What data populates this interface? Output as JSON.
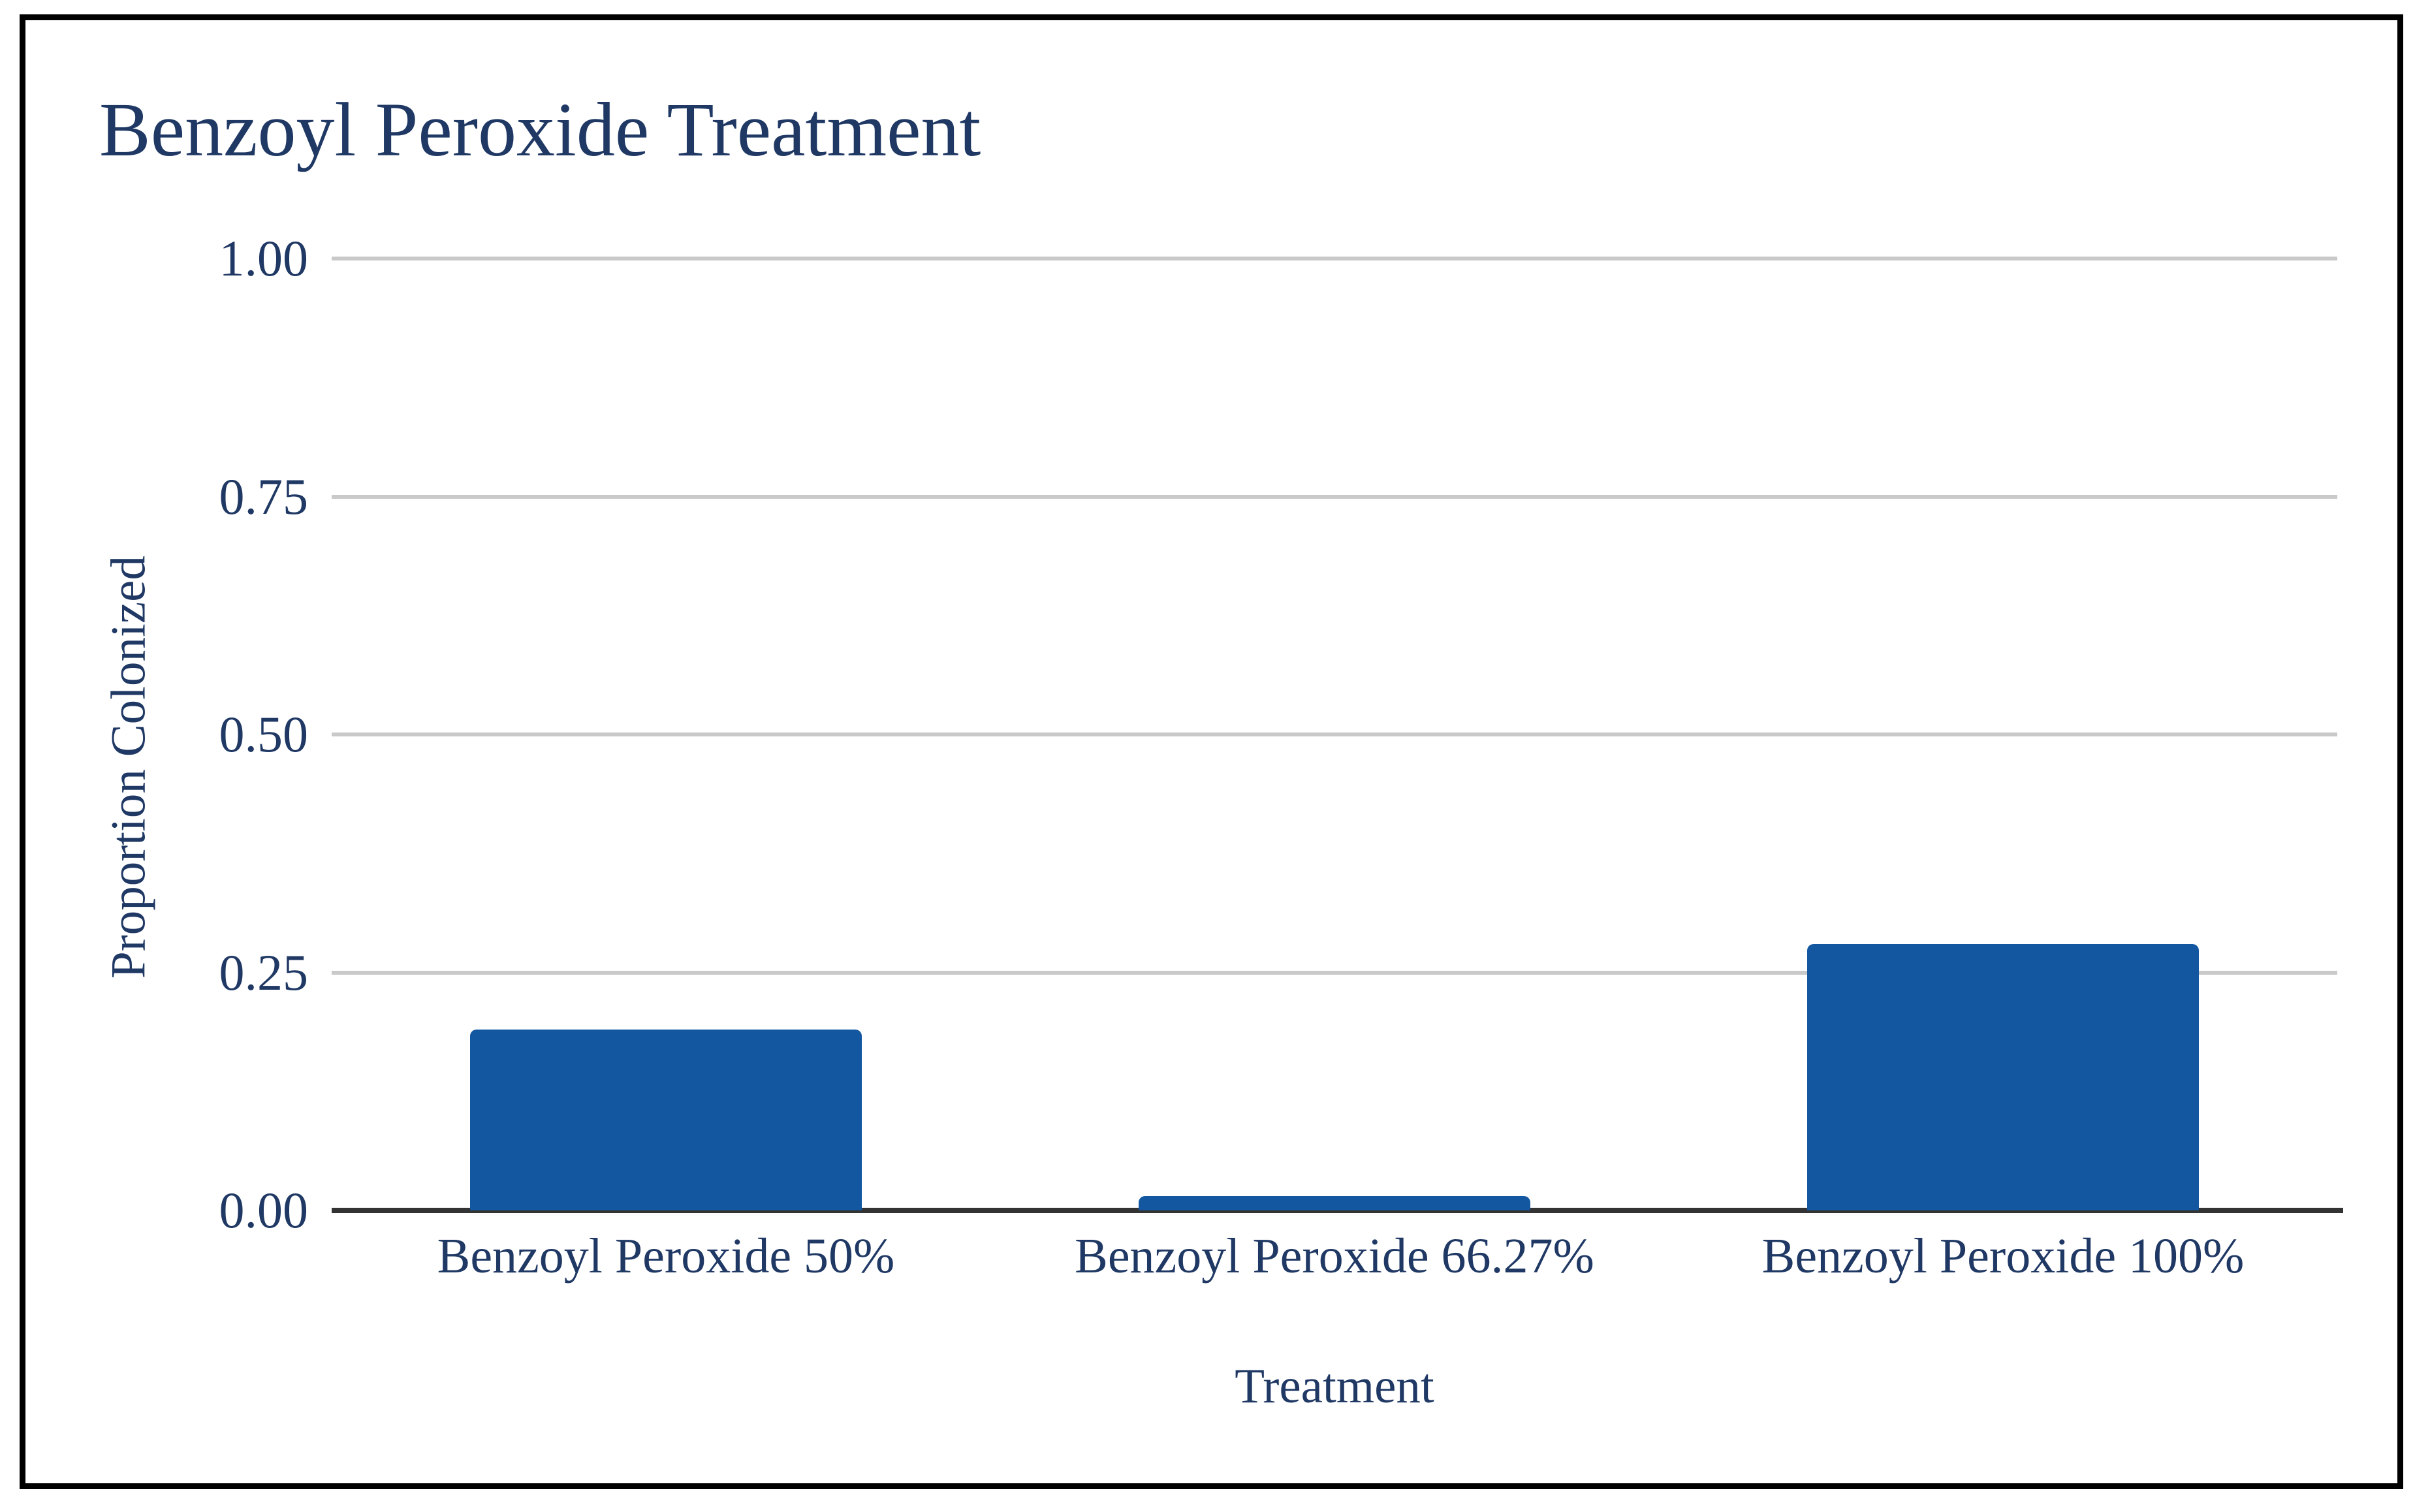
{
  "chart_data": {
    "type": "bar",
    "title": "Benzoyl Peroxide Treatment",
    "categories": [
      "Benzoyl Peroxide 50%",
      "Benzoyl Peroxide 66.27%",
      "Benzoyl Peroxide 100%"
    ],
    "values": [
      0.19,
      0.015,
      0.28
    ],
    "xlabel": "Treatment",
    "ylabel": "Proportion Colonized",
    "ylim": [
      0,
      1
    ],
    "yticks": [
      0,
      0.25,
      0.5,
      0.75,
      1
    ],
    "ytick_labels": [
      "0.00",
      "0.25",
      "0.50",
      "0.75",
      "1.00"
    ],
    "grid": "horizontal-only",
    "legend": "none",
    "bar_color": "#1257A0",
    "text_color": "#1F3864",
    "gridline_color": "#C9C9C9",
    "axis_line_color": "#333333",
    "border_color": "#000000"
  }
}
